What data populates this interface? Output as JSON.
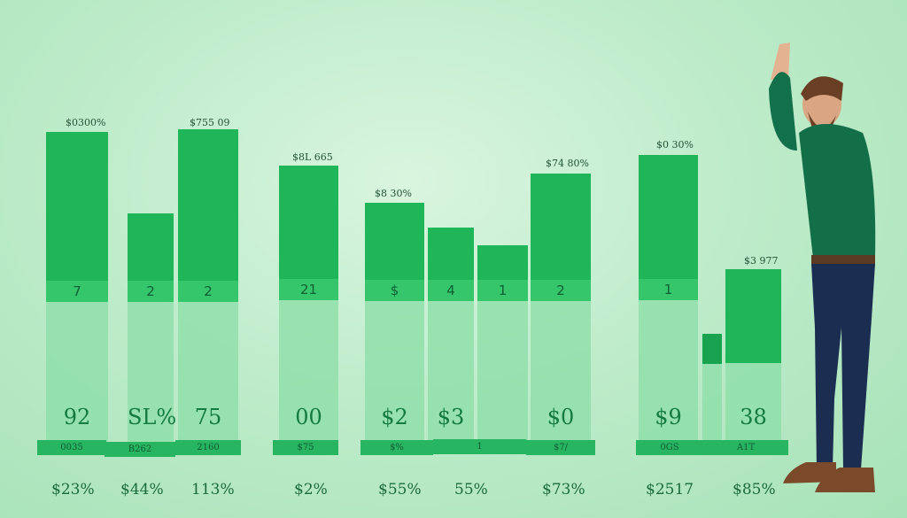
{
  "bars": [
    {
      "top_label": "$0300%",
      "band": "7",
      "big": "92",
      "base": "0035",
      "pct": "$23%"
    },
    {
      "top_label": "",
      "band": "2",
      "big": "SL%",
      "base": "B262",
      "pct": "$44%"
    },
    {
      "top_label": "$755 09",
      "band": "2",
      "big": "75",
      "base": "2160",
      "pct": "113%"
    },
    {
      "top_label": "$8L 665",
      "band": "21",
      "big": "00",
      "base": "$75",
      "pct": "$2%"
    },
    {
      "top_label": "$8 30%",
      "band": "$",
      "big": "$2",
      "base": "$%",
      "pct": "$55%"
    },
    {
      "top_label": "",
      "band": "4",
      "big": "$3",
      "base": "1",
      "pct": "55%"
    },
    {
      "top_label": "",
      "band": "1",
      "big": "",
      "base": "",
      "pct": ""
    },
    {
      "top_label": "$74 80%",
      "band": "2",
      "big": "$0",
      "base": "$7/",
      "pct": "$73%"
    },
    {
      "top_label": "$0 30%",
      "band": "1",
      "big": "$9",
      "base": "0GS",
      "pct": "$2517"
    },
    {
      "top_label": "",
      "band": "",
      "big": "",
      "base": "",
      "pct": ""
    },
    {
      "top_label": "$3 977",
      "band": "",
      "big": "38",
      "base": "A1T",
      "pct": "$85%"
    }
  ],
  "colors": {
    "bar_top": "#1fb65a",
    "bar_band": "#35c66c",
    "bar_lower": "#8fdfaa",
    "text": "#157a40"
  },
  "person_icon": "man-raising-hand"
}
